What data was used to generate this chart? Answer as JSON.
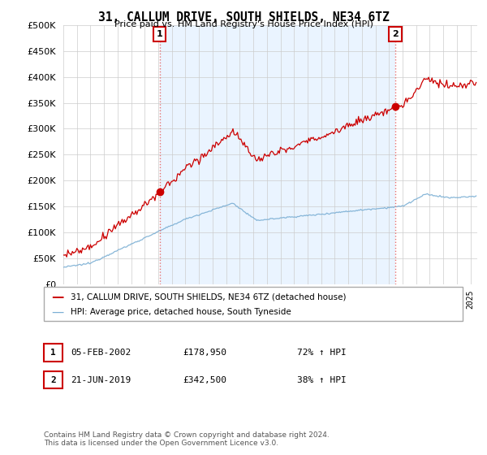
{
  "title": "31, CALLUM DRIVE, SOUTH SHIELDS, NE34 6TZ",
  "subtitle": "Price paid vs. HM Land Registry's House Price Index (HPI)",
  "legend_line1": "31, CALLUM DRIVE, SOUTH SHIELDS, NE34 6TZ (detached house)",
  "legend_line2": "HPI: Average price, detached house, South Tyneside",
  "transaction1_date": "05-FEB-2002",
  "transaction1_price": "£178,950",
  "transaction1_hpi": "72% ↑ HPI",
  "transaction1_year": 2002.09,
  "transaction2_date": "21-JUN-2019",
  "transaction2_price": "£342,500",
  "transaction2_hpi": "38% ↑ HPI",
  "transaction2_year": 2019.46,
  "hpi_color": "#7bafd4",
  "price_color": "#cc0000",
  "vline_color": "#e87070",
  "shade_color": "#ddeeff",
  "ylim": [
    0,
    500000
  ],
  "yticks": [
    0,
    50000,
    100000,
    150000,
    200000,
    250000,
    300000,
    350000,
    400000,
    450000,
    500000
  ],
  "xlim_start": 1995.0,
  "xlim_end": 2025.5,
  "footer": "Contains HM Land Registry data © Crown copyright and database right 2024.\nThis data is licensed under the Open Government Licence v3.0.",
  "background_color": "#ffffff",
  "grid_color": "#cccccc"
}
